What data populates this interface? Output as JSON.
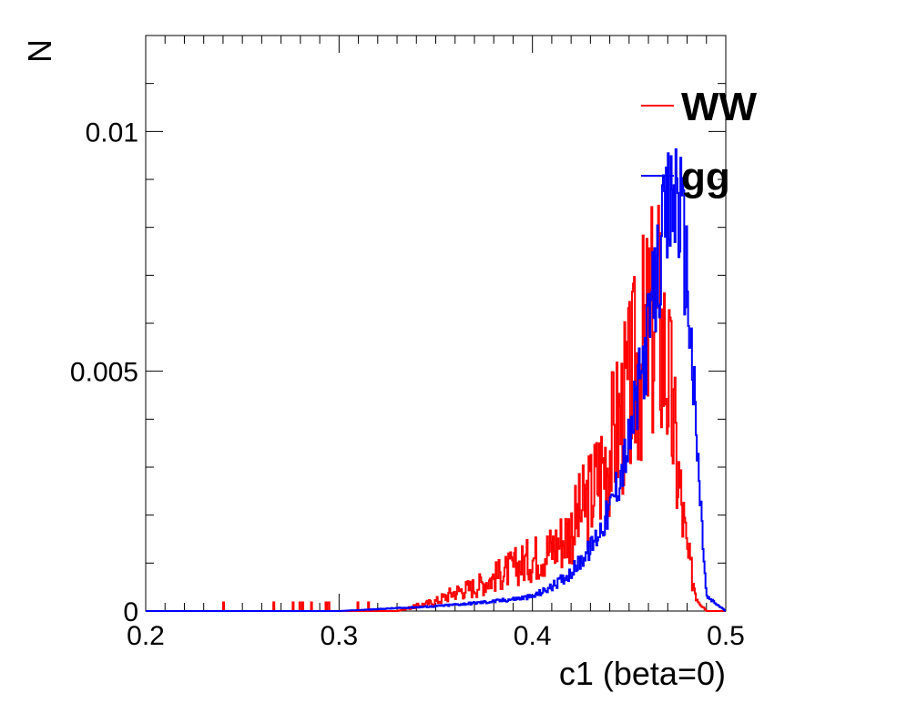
{
  "chart_data": {
    "type": "line",
    "xlabel": "c1 (beta=0)",
    "ylabel": "N",
    "xlim": [
      0.2,
      0.5
    ],
    "ylim": [
      0,
      0.012
    ],
    "x_ticks": [
      "0.2",
      "0.3",
      "0.4",
      "0.5"
    ],
    "y_ticks": [
      "0",
      "0.005",
      "0.01"
    ],
    "legend_placement": "top-right",
    "grid": false,
    "series": [
      {
        "name": "WW",
        "color": "#ff0000",
        "x": [
          0.2,
          0.23,
          0.25,
          0.3,
          0.33,
          0.35,
          0.36,
          0.37,
          0.38,
          0.39,
          0.4,
          0.41,
          0.42,
          0.43,
          0.44,
          0.45,
          0.455,
          0.46,
          0.465,
          0.47,
          0.475,
          0.48,
          0.485,
          0.49
        ],
        "values": [
          0.0,
          0.0,
          0.0,
          0.0,
          0.0,
          0.0002,
          0.0004,
          0.0005,
          0.0007,
          0.0009,
          0.0011,
          0.0013,
          0.0017,
          0.0024,
          0.0034,
          0.0045,
          0.0052,
          0.0058,
          0.0062,
          0.005,
          0.003,
          0.0012,
          0.0003,
          0.0
        ]
      },
      {
        "name": "gg",
        "color": "#0000ff",
        "x": [
          0.2,
          0.3,
          0.35,
          0.38,
          0.4,
          0.41,
          0.42,
          0.43,
          0.44,
          0.45,
          0.455,
          0.46,
          0.465,
          0.47,
          0.475,
          0.48,
          0.485,
          0.49,
          0.5
        ],
        "values": [
          0.0,
          0.0,
          0.0001,
          0.0002,
          0.0003,
          0.0005,
          0.0008,
          0.0013,
          0.0021,
          0.0035,
          0.0046,
          0.0058,
          0.0071,
          0.0082,
          0.0089,
          0.007,
          0.0035,
          0.0003,
          0.0
        ]
      }
    ]
  }
}
